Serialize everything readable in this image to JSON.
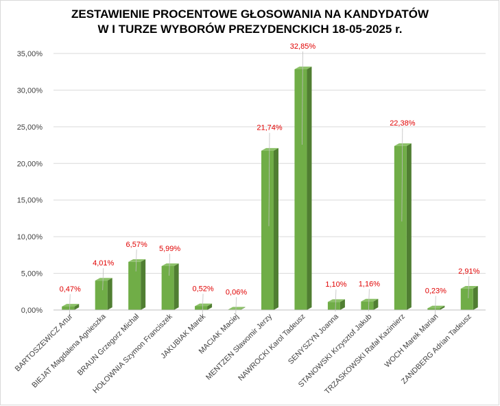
{
  "chart_data": {
    "type": "bar",
    "title": [
      "ZESTAWIENIE PROCENTOWE GŁOSOWANIA NA KANDYDATÓW",
      "W I TURZE WYBORÓW PREZYDENCKICH 18-05-2025 r."
    ],
    "categories": [
      "BARTOSZEWICZ Artur",
      "BIEJAT Magdalena Agnieszka",
      "BRAUN Grzegorz Michał",
      "HOŁOWNIA Szymon Franciszek",
      "JAKUBIAK Marek",
      "MACIAK Maciej",
      "MENTZEN Sławomir Jerzy",
      "NAWROCKI Karol Tadeusz",
      "SENYSZYN Joanna",
      "STANOWSKI Krzysztof Jakub",
      "TRZASKOWSKI Rafał Kazimierz",
      "WOCH Marek Marian",
      "ZANDBERG Adrian Tadeusz"
    ],
    "values": [
      0.47,
      4.01,
      6.57,
      5.99,
      0.52,
      0.06,
      21.74,
      32.85,
      1.1,
      1.16,
      22.38,
      0.23,
      2.91
    ],
    "data_labels": [
      "0,47%",
      "4,01%",
      "6,57%",
      "5,99%",
      "0,52%",
      "0,06%",
      "21,74%",
      "32,85%",
      "1,10%",
      "1,16%",
      "22,38%",
      "0,23%",
      "2,91%"
    ],
    "ylim": [
      0,
      35
    ],
    "yticks": [
      "0,00%",
      "5,00%",
      "10,00%",
      "15,00%",
      "20,00%",
      "25,00%",
      "30,00%",
      "35,00%"
    ],
    "grid": true,
    "bar_color": "#70ad47",
    "bar_side_color": "#507e32",
    "bar_top_color": "#8cc168",
    "label_color": "#e00000"
  }
}
